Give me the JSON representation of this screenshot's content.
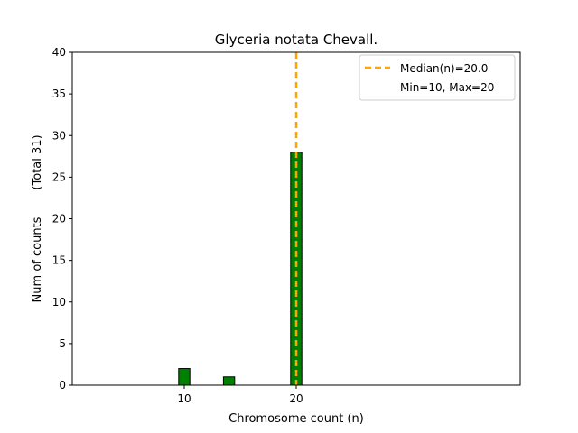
{
  "chart_data": {
    "type": "bar",
    "title": "Glyceria notata Chevall.",
    "xlabel": "Chromosome count (n)",
    "ylabel": "Num of counts",
    "ylabel_total": "(Total 31)",
    "xlim": [
      0,
      40
    ],
    "ylim": [
      0,
      40
    ],
    "x_ticks": [
      10,
      20
    ],
    "y_ticks": [
      0,
      5,
      10,
      15,
      20,
      25,
      30,
      35,
      40
    ],
    "bar_width": 1,
    "bars": [
      {
        "x": 10,
        "value": 2
      },
      {
        "x": 14,
        "value": 1
      },
      {
        "x": 20,
        "value": 28
      }
    ],
    "bar_color": "#008000",
    "bar_edge_color": "#000000",
    "median": {
      "x": 20,
      "color": "#ffa500",
      "label": "Median(n)=20.0"
    },
    "range_text": "Min=10, Max=20",
    "legend_position": "top-right",
    "grid": false
  }
}
